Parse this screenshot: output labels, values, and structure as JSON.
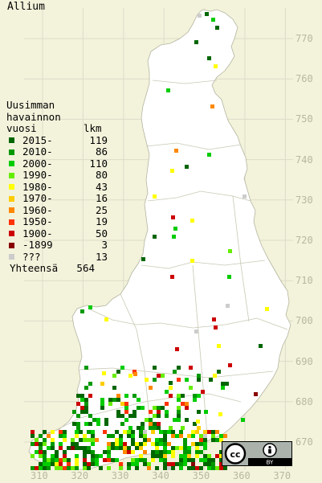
{
  "title": "Allium",
  "legend": {
    "heading": [
      "Uusimman",
      "havainnon"
    ],
    "col_year": "vuosi",
    "col_count": "lkm",
    "rows": [
      {
        "label": "2015-",
        "count": "119",
        "color": "#006600"
      },
      {
        "label": "2010-",
        "count": "86",
        "color": "#009900"
      },
      {
        "label": "2000-",
        "count": "110",
        "color": "#00cc00"
      },
      {
        "label": "1990-",
        "count": "80",
        "color": "#66ee00"
      },
      {
        "label": "1980-",
        "count": "43",
        "color": "#ffff00"
      },
      {
        "label": "1970-",
        "count": "16",
        "color": "#ffcc00"
      },
      {
        "label": "1960-",
        "count": "25",
        "color": "#ff8800"
      },
      {
        "label": "1950-",
        "count": "19",
        "color": "#ff3300"
      },
      {
        "label": "1900-",
        "count": "50",
        "color": "#cc0000"
      },
      {
        "label": "-1899",
        "count": "3",
        "color": "#880000"
      },
      {
        "label": "???",
        "count": "13",
        "color": "#cccccc"
      }
    ],
    "total_label": "Yhteensä",
    "total_count": "564"
  },
  "y_axis_labels": [
    "770",
    "760",
    "750",
    "740",
    "730",
    "720",
    "710",
    "700",
    "690",
    "680",
    "670"
  ],
  "x_axis_labels": [
    "310",
    "320",
    "330",
    "340",
    "350",
    "360",
    "370"
  ],
  "license_badge": {
    "icons": [
      "cc-icon",
      "by-icon"
    ],
    "text": "BY"
  },
  "colors": {
    "background": "#f3f3dc",
    "land": "#ffffff",
    "grid": "#dcdcc8",
    "borders": "#c8c8b4"
  }
}
